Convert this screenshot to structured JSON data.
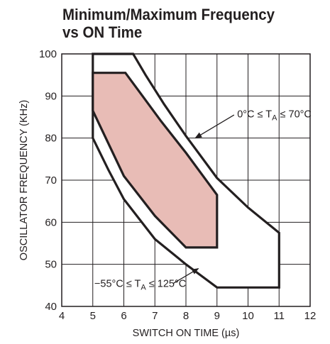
{
  "chart_data": {
    "type": "area",
    "title_line1": "Minimum/Maximum Frequency",
    "title_line2": "vs ON Time",
    "xlabel": "SWITCH ON TIME (µs)",
    "ylabel": "OSCILLATOR FREQUENCY (KHz)",
    "xlim": [
      4,
      12
    ],
    "ylim": [
      40,
      100
    ],
    "xticks": [
      "4",
      "5",
      "6",
      "7",
      "8",
      "9",
      "10",
      "11",
      "12"
    ],
    "yticks": [
      "40",
      "50",
      "60",
      "70",
      "80",
      "90",
      "100"
    ],
    "grid": true,
    "regions": [
      {
        "name": "0°C ≤ TA ≤ 70°C",
        "fill": "#e8bcb6",
        "points": [
          [
            5.0,
            95.5
          ],
          [
            6.05,
            95.5
          ],
          [
            6.6,
            90
          ],
          [
            7.2,
            84
          ],
          [
            8.0,
            76.5
          ],
          [
            9.0,
            66.5
          ],
          [
            9.0,
            54.0
          ],
          [
            8.0,
            54.0
          ],
          [
            7.0,
            61.5
          ],
          [
            6.0,
            71.0
          ],
          [
            5.0,
            86.5
          ]
        ]
      },
      {
        "name": "−55°C ≤ TA ≤ 125°C",
        "fill": "none",
        "points": [
          [
            5.0,
            100
          ],
          [
            6.3,
            100
          ],
          [
            6.7,
            95
          ],
          [
            7.3,
            88
          ],
          [
            8.0,
            80.5
          ],
          [
            9.0,
            70.5
          ],
          [
            10.0,
            63.5
          ],
          [
            11.0,
            57.5
          ],
          [
            11.0,
            44.5
          ],
          [
            9.0,
            44.5
          ],
          [
            8.0,
            50.0
          ],
          [
            7.0,
            56.0
          ],
          [
            6.0,
            65.5
          ],
          [
            5.5,
            72.5
          ],
          [
            5.0,
            80.0
          ]
        ]
      }
    ],
    "annotations": {
      "inner": {
        "prefix": "0°C ≤ T",
        "sub": "A",
        "suffix": " ≤ 70°C",
        "arrow_tail": [
          9.55,
          85.5
        ],
        "arrow_head": [
          8.3,
          80.0
        ]
      },
      "outer": {
        "prefix": "−55°C ≤ T",
        "sub": "A",
        "suffix": " ≤ 125°C",
        "arrow_tail": [
          7.6,
          45.5
        ],
        "arrow_head": [
          8.4,
          49.0
        ]
      }
    }
  }
}
